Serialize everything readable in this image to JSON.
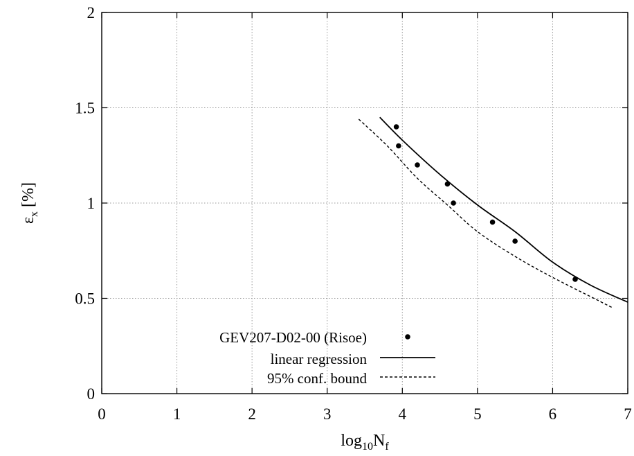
{
  "chart_data": {
    "type": "scatter",
    "xlabel": {
      "base": "log",
      "base_sub": "10",
      "main": "N",
      "main_sub": "f"
    },
    "ylabel": {
      "main": "ε",
      "main_sub": "x",
      "tail": " [%]"
    },
    "xlim": [
      0,
      7
    ],
    "ylim": [
      0,
      2
    ],
    "x_ticks": [
      0,
      1,
      2,
      3,
      4,
      5,
      6,
      7
    ],
    "x_tick_labels": [
      "0",
      "1",
      "2",
      "3",
      "4",
      "5",
      "6",
      "7"
    ],
    "y_ticks": [
      0,
      0.5,
      1,
      1.5,
      2
    ],
    "y_tick_labels": [
      "0",
      "0.5",
      "1",
      "1.5",
      "2"
    ],
    "grid": true,
    "legend_position": "bottom-left",
    "series": [
      {
        "name": "GEV207-D02-00 (Risoe)",
        "kind": "points",
        "x": [
          3.92,
          3.95,
          4.2,
          4.6,
          4.68,
          5.2,
          5.5,
          6.3
        ],
        "y": [
          1.4,
          1.3,
          1.2,
          1.1,
          1.0,
          0.9,
          0.8,
          0.6
        ]
      },
      {
        "name": "linear regression",
        "kind": "line",
        "style": "solid",
        "x": [
          3.7,
          4.0,
          4.5,
          5.0,
          5.5,
          6.0,
          6.5,
          7.0
        ],
        "y": [
          1.45,
          1.33,
          1.15,
          0.99,
          0.85,
          0.69,
          0.57,
          0.48
        ]
      },
      {
        "name": "95% conf. bound",
        "kind": "line",
        "style": "dashed",
        "x": [
          3.42,
          3.8,
          4.2,
          4.6,
          5.0,
          5.5,
          6.0,
          6.5,
          6.8
        ],
        "y": [
          1.44,
          1.3,
          1.13,
          0.99,
          0.85,
          0.72,
          0.61,
          0.51,
          0.45
        ]
      }
    ]
  }
}
